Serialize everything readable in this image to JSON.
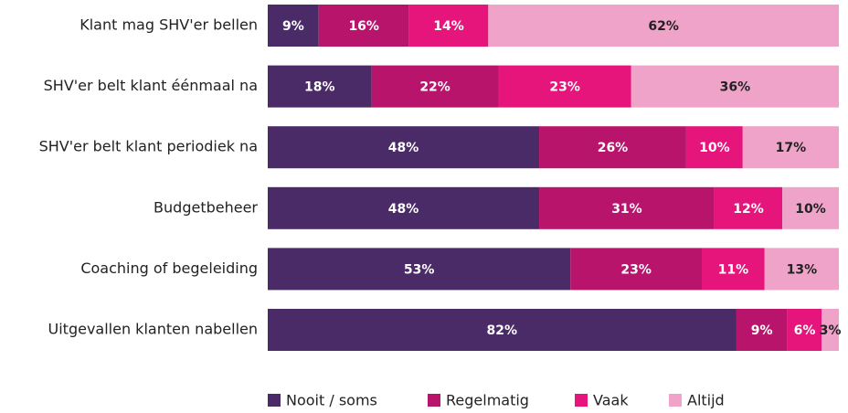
{
  "chart_data": {
    "type": "bar",
    "orientation": "horizontal",
    "stacked": true,
    "normalized": true,
    "categories": [
      "Klant mag SHV'er bellen",
      "SHV'er belt klant éénmaal na",
      "SHV'er belt klant periodiek na",
      "Budgetbeheer",
      "Coaching of begeleiding",
      "Uitgevallen klanten nabellen"
    ],
    "series": [
      {
        "name": "Nooit / soms",
        "color": "#4b2a68",
        "label_color": "#ffffff",
        "values": [
          9,
          18,
          48,
          48,
          53,
          82
        ],
        "value_labels": [
          "9%",
          "18%",
          "48%",
          "48%",
          "53%",
          "82%"
        ]
      },
      {
        "name": "Regelmatig",
        "color": "#b8146c",
        "label_color": "#ffffff",
        "values": [
          16,
          22,
          26,
          31,
          23,
          9
        ],
        "value_labels": [
          "16%",
          "22%",
          "26%",
          "31%",
          "23%",
          "9%"
        ]
      },
      {
        "name": "Vaak",
        "color": "#e5157b",
        "label_color": "#ffffff",
        "values": [
          14,
          23,
          10,
          12,
          11,
          6
        ],
        "value_labels": [
          "14%",
          "23%",
          "10%",
          "12%",
          "11%",
          "6%"
        ]
      },
      {
        "name": "Altijd",
        "color": "#f0a3c9",
        "label_color": "#222222",
        "values": [
          62,
          36,
          17,
          10,
          13,
          3
        ],
        "value_labels": [
          "62%",
          "36%",
          "17%",
          "10%",
          "13%",
          "3%"
        ]
      }
    ],
    "legend": "bottom"
  }
}
